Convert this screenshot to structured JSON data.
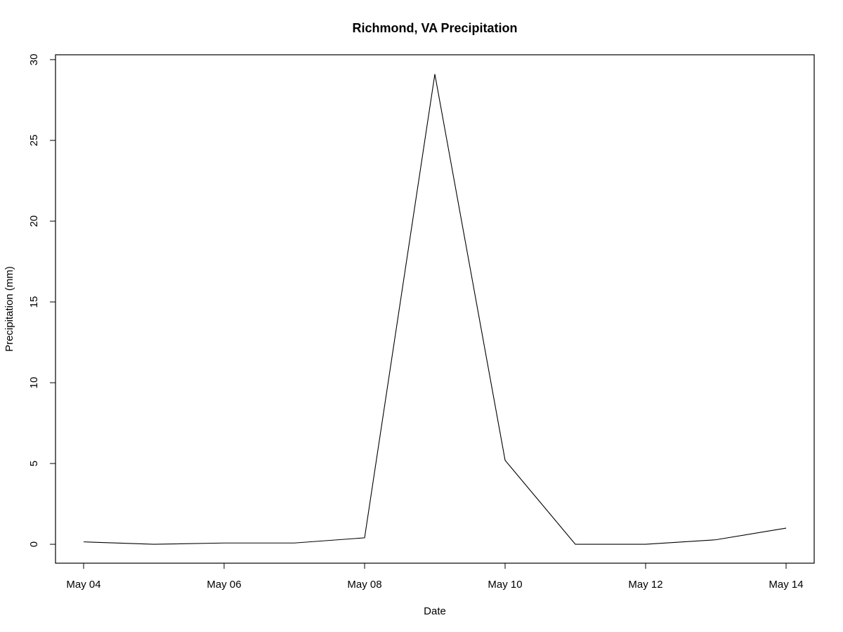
{
  "chart_data": {
    "type": "line",
    "title": "Richmond, VA Precipitation",
    "xlabel": "Date",
    "ylabel": "Precipitation (mm)",
    "x": [
      "2024-05-04",
      "2024-05-05",
      "2024-05-06",
      "2024-05-07",
      "2024-05-08",
      "2024-05-09",
      "2024-05-10",
      "2024-05-11",
      "2024-05-12",
      "2024-05-13",
      "2024-05-14"
    ],
    "series": [
      {
        "values": [
          0.15,
          0.0,
          0.08,
          0.08,
          0.4,
          29.1,
          5.2,
          0.0,
          0.0,
          0.28,
          1.0
        ],
        "color": "#000000"
      }
    ],
    "xticks": [
      {
        "x": "2024-05-04",
        "label": "May 04"
      },
      {
        "x": "2024-05-06",
        "label": "May 06"
      },
      {
        "x": "2024-05-08",
        "label": "May 08"
      },
      {
        "x": "2024-05-10",
        "label": "May 10"
      },
      {
        "x": "2024-05-12",
        "label": "May 12"
      },
      {
        "x": "2024-05-14",
        "label": "May 14"
      }
    ],
    "yticks": [
      0,
      5,
      10,
      15,
      20,
      25,
      30
    ],
    "xlim": [
      "2024-05-03T14:24",
      "2024-05-14T09:36"
    ],
    "ylim": [
      -1.17,
      30.3
    ],
    "grid": false,
    "legend": "none"
  }
}
